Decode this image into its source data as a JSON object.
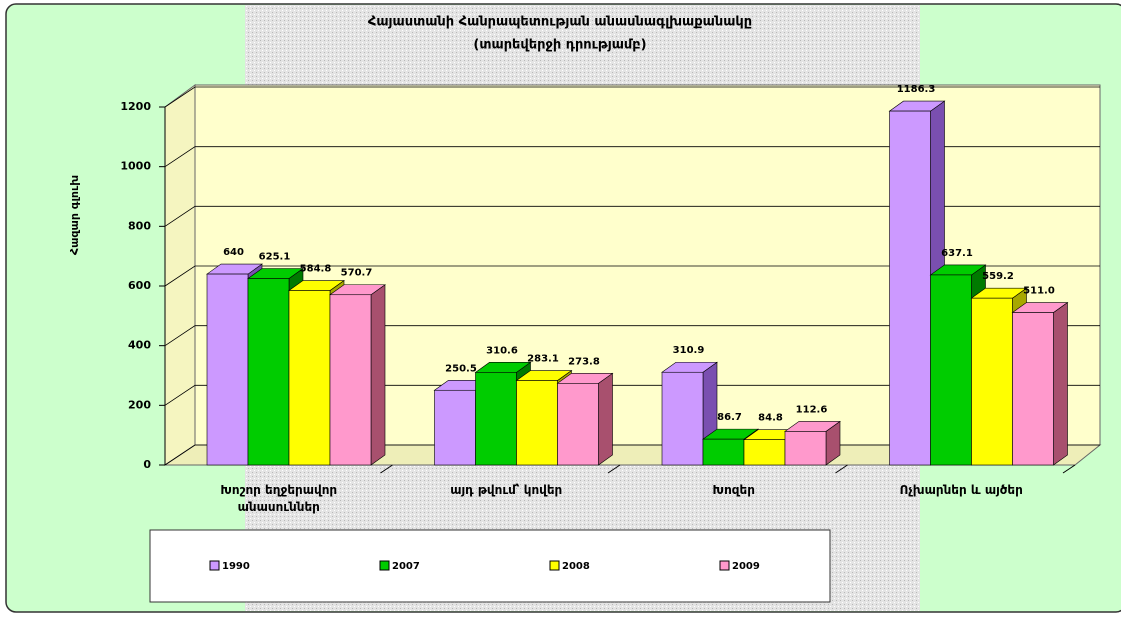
{
  "chart_data": {
    "type": "bar3d",
    "title": "Հայաստանի Հանրապետության անասնագլխաքանակը",
    "subtitle": "(տարեվերջի դրությամբ)",
    "y_label": "Հազար գլուխ",
    "categories": [
      "Խոշոր եղջերավոր անասուններ",
      "այդ թվում՝ կովեր",
      "Խոզեր",
      "Ոչխարներ և այծեր"
    ],
    "series": [
      {
        "name": "1990",
        "color": "#cc99ff",
        "side": "#7a4fb0",
        "values": [
          640,
          250.5,
          310.9,
          1186.3
        ]
      },
      {
        "name": "2007",
        "color": "#00cc00",
        "side": "#007a00",
        "values": [
          625.1,
          310.6,
          86.7,
          637.1
        ]
      },
      {
        "name": "2008",
        "color": "#ffff00",
        "side": "#a8a800",
        "values": [
          584.8,
          283.1,
          84.8,
          559.2
        ]
      },
      {
        "name": "2009",
        "color": "#ff99cc",
        "side": "#a8506e",
        "values": [
          570.7,
          273.8,
          112.6,
          511
        ],
        "value_labels": [
          "570.7",
          "273.8",
          "112.6",
          "511.0"
        ]
      }
    ],
    "ylim": [
      0,
      1200
    ],
    "yticks": [
      0,
      200,
      400,
      600,
      800,
      1000,
      1200
    ],
    "grid": true
  }
}
